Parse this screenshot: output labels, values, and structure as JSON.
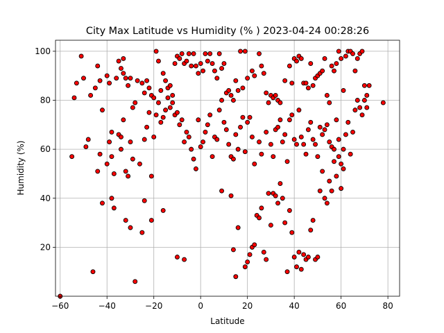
{
  "chart_data": {
    "type": "scatter",
    "title": "City Max Latitude vs Humidity (% ) 2023-04-24 00:28:26",
    "xlabel": "Latitude",
    "ylabel": "Humidity (%)",
    "xlim": [
      -62,
      85
    ],
    "ylim": [
      0,
      104.5
    ],
    "xticks": [
      -60,
      -40,
      -20,
      0,
      20,
      40,
      60,
      80
    ],
    "yticks": [
      20,
      40,
      60,
      80,
      100
    ],
    "grid": true,
    "legend": "none",
    "marker_color": "#ff0000",
    "marker_edge": "#000000",
    "points": [
      [
        -54,
        81
      ],
      [
        -53,
        87
      ],
      [
        -51,
        98
      ],
      [
        -50,
        89
      ],
      [
        -49,
        61
      ],
      [
        -48,
        64
      ],
      [
        -47,
        82
      ],
      [
        -45,
        85
      ],
      [
        -44,
        94
      ],
      [
        -43,
        88
      ],
      [
        -42,
        76
      ],
      [
        -40,
        90
      ],
      [
        -39,
        87
      ],
      [
        -38,
        67
      ],
      [
        -36,
        89
      ],
      [
        -35,
        96
      ],
      [
        -34,
        93
      ],
      [
        -33,
        97
      ],
      [
        -33,
        91
      ],
      [
        -32,
        89
      ],
      [
        -31,
        86
      ],
      [
        -30,
        89
      ],
      [
        -29,
        77
      ],
      [
        -28,
        79
      ],
      [
        -27,
        88
      ],
      [
        -25,
        87
      ],
      [
        -24,
        83
      ],
      [
        -23,
        88
      ],
      [
        -22,
        85
      ],
      [
        -21,
        82
      ],
      [
        -20,
        81
      ],
      [
        -19,
        100
      ],
      [
        -18,
        96
      ],
      [
        -17,
        84
      ],
      [
        -16,
        91
      ],
      [
        -15,
        88
      ],
      [
        -14,
        85
      ],
      [
        -13,
        86
      ],
      [
        -12,
        82
      ],
      [
        -11,
        95
      ],
      [
        -10,
        98
      ],
      [
        -9,
        97
      ],
      [
        -8,
        99
      ],
      [
        -7,
        95
      ],
      [
        -6,
        96
      ],
      [
        -5,
        99
      ],
      [
        -4,
        94
      ],
      [
        -3,
        99
      ],
      [
        -2,
        94
      ],
      [
        -1,
        91
      ],
      [
        0,
        95
      ],
      [
        1,
        92
      ],
      [
        2,
        99
      ],
      [
        3,
        96
      ],
      [
        4,
        99
      ],
      [
        5,
        95
      ],
      [
        6,
        92
      ],
      [
        7,
        89
      ],
      [
        8,
        99
      ],
      [
        9,
        93
      ],
      [
        10,
        95
      ],
      [
        11,
        83
      ],
      [
        12,
        84
      ],
      [
        13,
        82
      ],
      [
        14,
        80
      ],
      [
        15,
        88
      ],
      [
        16,
        84
      ],
      [
        17,
        100
      ],
      [
        18,
        85
      ],
      [
        19,
        100
      ],
      [
        20,
        89
      ],
      [
        22,
        92
      ],
      [
        23,
        90
      ],
      [
        25,
        99
      ],
      [
        26,
        94
      ],
      [
        27,
        91
      ],
      [
        28,
        83
      ],
      [
        29,
        79
      ],
      [
        30,
        82
      ],
      [
        31,
        81
      ],
      [
        32,
        82
      ],
      [
        33,
        80
      ],
      [
        34,
        79
      ],
      [
        36,
        88
      ],
      [
        38,
        94
      ],
      [
        39,
        87
      ],
      [
        40,
        97
      ],
      [
        41,
        96
      ],
      [
        42,
        98
      ],
      [
        43,
        97
      ],
      [
        44,
        87
      ],
      [
        45,
        87
      ],
      [
        46,
        85
      ],
      [
        47,
        95
      ],
      [
        48,
        86
      ],
      [
        49,
        89
      ],
      [
        50,
        90
      ],
      [
        51,
        91
      ],
      [
        52,
        92
      ],
      [
        53,
        97
      ],
      [
        54,
        82
      ],
      [
        55,
        79
      ],
      [
        56,
        94
      ],
      [
        57,
        92
      ],
      [
        58,
        95
      ],
      [
        59,
        100
      ],
      [
        60,
        97
      ],
      [
        61,
        84
      ],
      [
        62,
        98
      ],
      [
        63,
        100
      ],
      [
        64,
        100
      ],
      [
        65,
        99
      ],
      [
        66,
        92
      ],
      [
        67,
        97
      ],
      [
        68,
        99
      ],
      [
        69,
        100
      ],
      [
        70,
        86
      ],
      [
        71,
        82
      ],
      [
        72,
        86
      ],
      [
        78,
        79
      ],
      [
        -55,
        57
      ],
      [
        -44,
        51
      ],
      [
        -43,
        58
      ],
      [
        -40,
        54
      ],
      [
        -39,
        63
      ],
      [
        -38,
        57
      ],
      [
        -37,
        50
      ],
      [
        -35,
        66
      ],
      [
        -34,
        60
      ],
      [
        -33,
        72
      ],
      [
        -32,
        51
      ],
      [
        -31,
        49
      ],
      [
        -30,
        63
      ],
      [
        -29,
        56
      ],
      [
        -26,
        54
      ],
      [
        -24,
        64
      ],
      [
        -23,
        69
      ],
      [
        -22,
        75
      ],
      [
        -21,
        49
      ],
      [
        -20,
        65
      ],
      [
        -19,
        74
      ],
      [
        -18,
        79
      ],
      [
        -17,
        71
      ],
      [
        -16,
        73
      ],
      [
        -15,
        76
      ],
      [
        -14,
        81
      ],
      [
        -13,
        77
      ],
      [
        -12,
        79
      ],
      [
        -11,
        74
      ],
      [
        -10,
        75
      ],
      [
        -9,
        70
      ],
      [
        -8,
        72
      ],
      [
        -7,
        63
      ],
      [
        -6,
        67
      ],
      [
        -5,
        65
      ],
      [
        -4,
        60
      ],
      [
        -3,
        56
      ],
      [
        -2,
        52
      ],
      [
        -1,
        72
      ],
      [
        0,
        61
      ],
      [
        1,
        63
      ],
      [
        2,
        67
      ],
      [
        3,
        70
      ],
      [
        4,
        74
      ],
      [
        5,
        57
      ],
      [
        6,
        65
      ],
      [
        7,
        64
      ],
      [
        8,
        76
      ],
      [
        9,
        80
      ],
      [
        10,
        71
      ],
      [
        11,
        68
      ],
      [
        12,
        62
      ],
      [
        13,
        57
      ],
      [
        14,
        56
      ],
      [
        15,
        66
      ],
      [
        16,
        60
      ],
      [
        17,
        69
      ],
      [
        18,
        73
      ],
      [
        19,
        59
      ],
      [
        20,
        71
      ],
      [
        21,
        73
      ],
      [
        22,
        65
      ],
      [
        23,
        54
      ],
      [
        25,
        63
      ],
      [
        26,
        58
      ],
      [
        28,
        67
      ],
      [
        30,
        62
      ],
      [
        31,
        57
      ],
      [
        32,
        68
      ],
      [
        33,
        69
      ],
      [
        34,
        72
      ],
      [
        35,
        63
      ],
      [
        36,
        66
      ],
      [
        37,
        55
      ],
      [
        38,
        72
      ],
      [
        39,
        74
      ],
      [
        40,
        64
      ],
      [
        41,
        62
      ],
      [
        42,
        76
      ],
      [
        43,
        65
      ],
      [
        44,
        62
      ],
      [
        45,
        58
      ],
      [
        46,
        68
      ],
      [
        47,
        71
      ],
      [
        48,
        64
      ],
      [
        49,
        62
      ],
      [
        50,
        57
      ],
      [
        51,
        69
      ],
      [
        52,
        66
      ],
      [
        53,
        68
      ],
      [
        54,
        70
      ],
      [
        55,
        63
      ],
      [
        56,
        61
      ],
      [
        57,
        60
      ],
      [
        58,
        72
      ],
      [
        59,
        64
      ],
      [
        60,
        54
      ],
      [
        61,
        60
      ],
      [
        62,
        66
      ],
      [
        63,
        71
      ],
      [
        64,
        58
      ],
      [
        65,
        67
      ],
      [
        66,
        76
      ],
      [
        67,
        80
      ],
      [
        68,
        77
      ],
      [
        69,
        74
      ],
      [
        70,
        80
      ],
      [
        71,
        77
      ],
      [
        -46,
        10
      ],
      [
        -42,
        38
      ],
      [
        -38,
        40
      ],
      [
        -37,
        36
      ],
      [
        -34,
        65
      ],
      [
        -32,
        31
      ],
      [
        -30,
        28
      ],
      [
        -28,
        6
      ],
      [
        -25,
        26
      ],
      [
        -24,
        39
      ],
      [
        -21,
        31
      ],
      [
        -16,
        35
      ],
      [
        -10,
        16
      ],
      [
        -7,
        15
      ],
      [
        9,
        43
      ],
      [
        13,
        41
      ],
      [
        14,
        19
      ],
      [
        15,
        8
      ],
      [
        16,
        28
      ],
      [
        19,
        12
      ],
      [
        20,
        14
      ],
      [
        21,
        17
      ],
      [
        22,
        20
      ],
      [
        23,
        21
      ],
      [
        24,
        33
      ],
      [
        25,
        32
      ],
      [
        26,
        36
      ],
      [
        27,
        18
      ],
      [
        28,
        15
      ],
      [
        29,
        42
      ],
      [
        30,
        29
      ],
      [
        31,
        42
      ],
      [
        32,
        41
      ],
      [
        33,
        38
      ],
      [
        34,
        46
      ],
      [
        35,
        40
      ],
      [
        36,
        30
      ],
      [
        37,
        10
      ],
      [
        38,
        35
      ],
      [
        39,
        26
      ],
      [
        40,
        16
      ],
      [
        41,
        12
      ],
      [
        42,
        18
      ],
      [
        43,
        11
      ],
      [
        44,
        17
      ],
      [
        45,
        15
      ],
      [
        46,
        16
      ],
      [
        47,
        27
      ],
      [
        48,
        31
      ],
      [
        49,
        15
      ],
      [
        50,
        16
      ],
      [
        51,
        43
      ],
      [
        52,
        51
      ],
      [
        53,
        40
      ],
      [
        54,
        38
      ],
      [
        55,
        47
      ],
      [
        56,
        43
      ],
      [
        57,
        55
      ],
      [
        58,
        49
      ],
      [
        59,
        57
      ],
      [
        60,
        44
      ],
      [
        61,
        52
      ],
      [
        -60,
        0
      ]
    ]
  }
}
